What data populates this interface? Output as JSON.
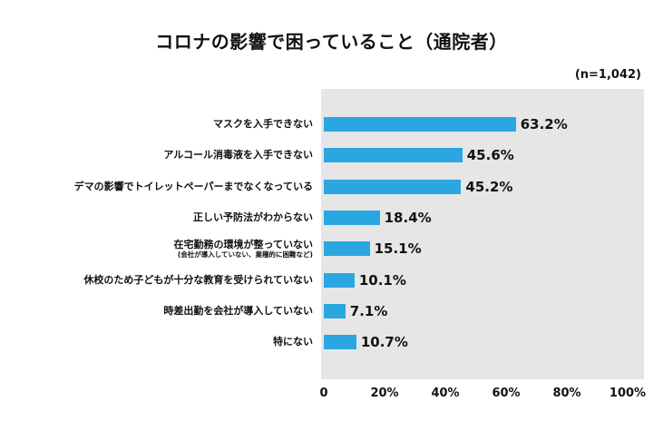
{
  "header": {
    "title": "コロナの影響で困っていること（通院者）",
    "sample_note": "(n=1,042)"
  },
  "chart_data": {
    "type": "bar",
    "orientation": "horizontal",
    "title": "コロナの影響で困っていること（通院者）",
    "note": "(n=1,042)",
    "categories": [
      "マスクを入手できない",
      "アルコール消毒液を入手できない",
      "デマの影響でトイレットペーパーまでなくなっている",
      "正しい予防法がわからない",
      "在宅勤務の環境が整っていない",
      "休校のため子どもが十分な教育を受けられていない",
      "時差出勤を会社が導入していない",
      "特にない"
    ],
    "category_notes": [
      "",
      "",
      "",
      "",
      "(会社が導入していない、業種的に困難など)",
      "",
      "",
      ""
    ],
    "values": [
      63.2,
      45.6,
      45.2,
      18.4,
      15.1,
      10.1,
      7.1,
      10.7
    ],
    "value_labels": [
      "63.2%",
      "45.6%",
      "45.2%",
      "18.4%",
      "15.1%",
      "10.1%",
      "7.1%",
      "10.7%"
    ],
    "xlim": [
      0,
      100
    ],
    "xticks": [
      "0",
      "20%",
      "40%",
      "60%",
      "80%",
      "100%"
    ],
    "grid": false,
    "colors": {
      "bar": "#2aa7e0",
      "plot_background": "#e6e6e6"
    }
  }
}
